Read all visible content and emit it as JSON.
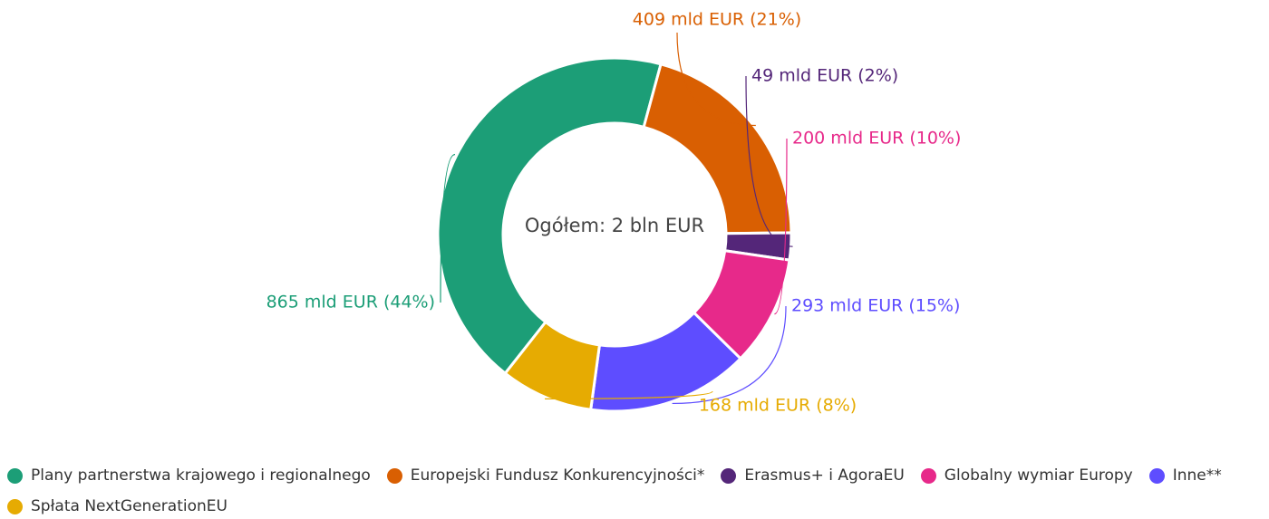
{
  "chart_data": {
    "type": "pie",
    "variant": "donut",
    "center_text": "Ogółem: 2 bln EUR",
    "series": [
      {
        "name": "Plany partnerstwa krajowego i regionalnego",
        "value": 865,
        "percent": 44,
        "label": "865 mld EUR (44%)",
        "color": "#1c9e77"
      },
      {
        "name": "Europejski Fundusz Konkurencyjności*",
        "value": 409,
        "percent": 21,
        "label": "409 mld EUR (21%)",
        "color": "#d95f02"
      },
      {
        "name": "Erasmus+ i AgoraEU",
        "value": 49,
        "percent": 2,
        "label": "49 mld EUR (2%)",
        "color": "#542679"
      },
      {
        "name": "Globalny wymiar Europy",
        "value": 200,
        "percent": 10,
        "label": "200 mld EUR (10%)",
        "color": "#e7298a"
      },
      {
        "name": "Inne**",
        "value": 293,
        "percent": 15,
        "label": "293 mld EUR (15%)",
        "color": "#5e4dff"
      },
      {
        "name": "Spłata NextGenerationEU",
        "value": 168,
        "percent": 8,
        "label": "168 mld EUR (8%)",
        "color": "#e6ab02"
      }
    ],
    "legend_position": "bottom"
  }
}
